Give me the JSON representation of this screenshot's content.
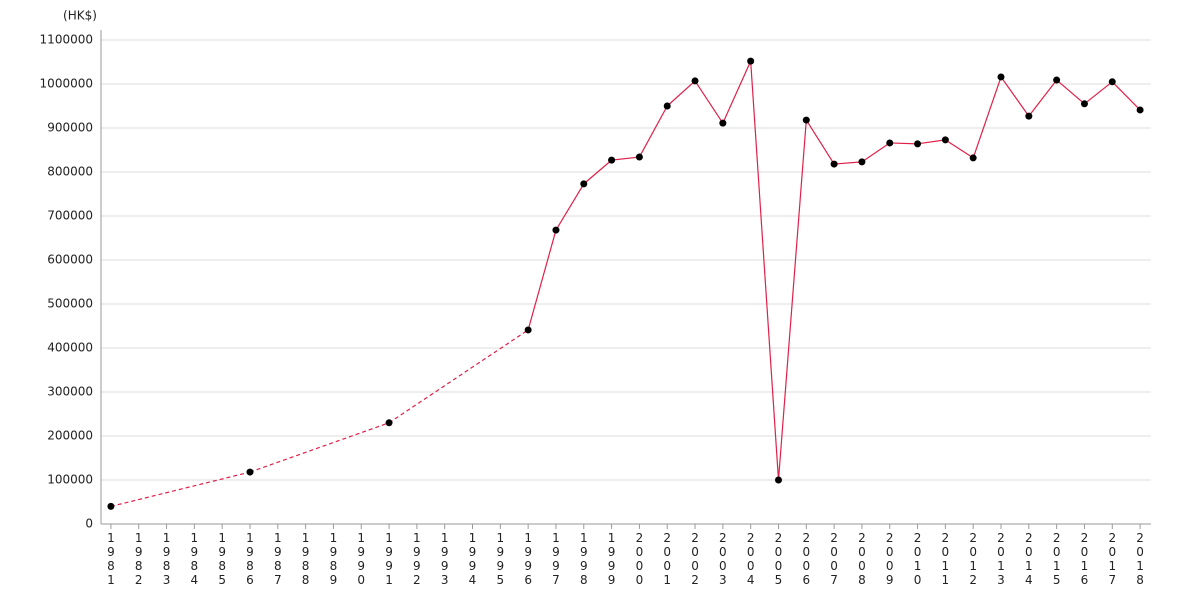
{
  "chart_data": {
    "type": "line",
    "y_unit_label": "(HK$)",
    "categories": [
      "1981",
      "1982",
      "1983",
      "1984",
      "1985",
      "1986",
      "1987",
      "1988",
      "1989",
      "1990",
      "1991",
      "1992",
      "1993",
      "1994",
      "1995",
      "1996",
      "1997",
      "1998",
      "1999",
      "2000",
      "2001",
      "2002",
      "2003",
      "2004",
      "2005",
      "2006",
      "2007",
      "2008",
      "2009",
      "2010",
      "2011",
      "2012",
      "2013",
      "2014",
      "2015",
      "2016",
      "2017",
      "2018"
    ],
    "values": [
      40000,
      null,
      null,
      null,
      null,
      118000,
      null,
      null,
      null,
      null,
      230000,
      null,
      null,
      null,
      null,
      441000,
      668000,
      773000,
      827000,
      834000,
      950000,
      1007000,
      911000,
      1052000,
      100000,
      918000,
      818000,
      823000,
      866000,
      864000,
      873000,
      832000,
      1016000,
      927000,
      1009000,
      955000,
      1005000,
      941000
    ],
    "color": "#e0204a",
    "marker_color": "#000000",
    "ylim": [
      0,
      1100000
    ],
    "yticks": [
      0,
      100000,
      200000,
      300000,
      400000,
      500000,
      600000,
      700000,
      800000,
      900000,
      1000000,
      1100000
    ],
    "grid": true
  }
}
